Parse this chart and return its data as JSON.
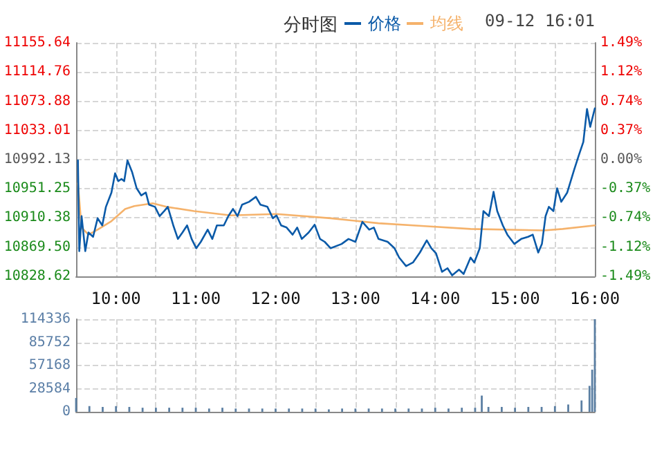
{
  "chart_data": [
    {
      "type": "line",
      "title": "分时图",
      "annotations": [
        "09-12 16:01"
      ],
      "series": [
        {
          "name": "价格",
          "color": "#0b5aa8",
          "x": [
            9.523,
            9.54,
            9.569,
            9.615,
            9.655,
            9.713,
            9.77,
            9.828,
            9.874,
            9.943,
            9.989,
            10.029,
            10.069,
            10.103,
            10.144,
            10.201,
            10.259,
            10.316,
            10.374,
            10.414,
            10.489,
            10.546,
            10.603,
            10.649,
            10.718,
            10.776,
            10.833,
            10.891,
            10.948,
            11.006,
            11.063,
            11.149,
            11.207,
            11.264,
            11.351,
            11.408,
            11.466,
            11.523,
            11.58,
            11.667,
            11.753,
            11.81,
            11.897,
            11.966,
            12.011,
            12.069,
            12.138,
            12.213,
            12.27,
            12.328,
            12.414,
            12.489,
            12.557,
            12.615,
            12.69,
            12.827,
            12.913,
            13,
            13.087,
            13.173,
            13.231,
            13.289,
            13.404,
            13.49,
            13.548,
            13.635,
            13.721,
            13.808,
            13.894,
            13.952,
            14.01,
            14.085,
            14.154,
            14.212,
            14.298,
            14.356,
            14.443,
            14.489,
            14.558,
            14.604,
            14.673,
            14.731,
            14.777,
            14.847,
            14.904,
            14.991,
            15.077,
            15.164,
            15.222,
            15.291,
            15.337,
            15.383,
            15.424,
            15.481,
            15.527,
            15.579,
            15.654,
            15.741,
            15.799,
            15.856,
            15.902,
            15.942,
            16
          ],
          "values": [
            10991,
            10864,
            10913,
            10864,
            10890,
            10884,
            10910,
            10900,
            10926,
            10946,
            10973,
            10962,
            10965,
            10962,
            10991,
            10975,
            10952,
            10942,
            10946,
            10929,
            10926,
            10913,
            10920,
            10926,
            10900,
            10881,
            10890,
            10900,
            10881,
            10868,
            10877,
            10894,
            10881,
            10900,
            10900,
            10913,
            10923,
            10913,
            10929,
            10933,
            10940,
            10929,
            10926,
            10910,
            10914,
            10900,
            10897,
            10887,
            10897,
            10881,
            10890,
            10901,
            10881,
            10877,
            10868,
            10874,
            10881,
            10877,
            10905,
            10894,
            10897,
            10881,
            10877,
            10868,
            10855,
            10843,
            10848,
            10862,
            10879,
            10868,
            10861,
            10835,
            10840,
            10830,
            10838,
            10832,
            10855,
            10848,
            10868,
            10920,
            10913,
            10947,
            10920,
            10900,
            10887,
            10874,
            10881,
            10884,
            10887,
            10862,
            10874,
            10913,
            10926,
            10920,
            10952,
            10933,
            10946,
            10978,
            10998,
            11017,
            11063,
            11038,
            11064
          ]
        },
        {
          "name": "均线",
          "color": "#f5b26b",
          "x": [
            9.523,
            9.569,
            9.655,
            9.77,
            9.943,
            10.115,
            10.23,
            10.46,
            10.632,
            10.977,
            11.437,
            12.011,
            12.69,
            13.289,
            13.866,
            14.443,
            15.366,
            15.597,
            16
          ],
          "values": [
            10959,
            10897,
            10887,
            10894,
            10906,
            10923,
            10927,
            10931,
            10926,
            10920,
            10914,
            10916,
            10910,
            10903,
            10899,
            10895,
            10893,
            10895,
            10900
          ]
        }
      ],
      "xlim": [
        9.5,
        16
      ],
      "xticks": [
        {
          "value": 10,
          "label": "10:00"
        },
        {
          "value": 10.5,
          "label": null
        },
        {
          "value": 11,
          "label": "11:00"
        },
        {
          "value": 11.5,
          "label": null
        },
        {
          "value": 12,
          "label": "12:00"
        },
        {
          "value": 12.5,
          "label": null
        },
        {
          "value": 13,
          "label": "13:00"
        },
        {
          "value": 13.5,
          "label": null
        },
        {
          "value": 14,
          "label": "14:00"
        },
        {
          "value": 14.5,
          "label": null
        },
        {
          "value": 15,
          "label": "15:00"
        },
        {
          "value": 15.5,
          "label": null
        },
        {
          "value": 16,
          "label": "16:00"
        }
      ],
      "ylim": [
        10828.62,
        11155.64
      ],
      "yticks": [
        10828.62,
        {
          "value": 10869.5,
          "label": "10869.50"
        },
        10910.38,
        10951.25,
        10992.13,
        11033.01,
        11073.88,
        11114.76,
        11155.64
      ],
      "y2lim": [
        -1.49,
        1.49
      ],
      "y2ticks": [
        {
          "value": -1.49,
          "label": "-1.49%"
        },
        {
          "value": -1.12,
          "label": "-1.12%"
        },
        {
          "value": -0.74,
          "label": "-0.74%"
        },
        {
          "value": -0.37,
          "label": "-0.37%"
        },
        {
          "value": 0,
          "label": "0.00%"
        },
        {
          "value": 0.37,
          "label": "0.37%"
        },
        {
          "value": 0.74,
          "label": "0.74%"
        },
        {
          "value": 1.12,
          "label": "1.12%"
        },
        {
          "value": 1.49,
          "label": "1.49%"
        }
      ],
      "grid": true,
      "legend": "top right",
      "marker": "none",
      "line_style": "solid"
    },
    {
      "type": "bar",
      "color": "#5b7fa3",
      "x": [
        9.5,
        9.6667,
        9.8333,
        10,
        10.1667,
        10.3333,
        10.5,
        10.6667,
        10.8333,
        11,
        11.1667,
        11.3333,
        11.5,
        11.6667,
        11.8333,
        12,
        12.1667,
        12.3333,
        12.5,
        12.6667,
        12.8333,
        13,
        13.1667,
        13.3333,
        13.5,
        13.6667,
        13.8333,
        14,
        14.1667,
        14.3333,
        14.5,
        14.5833,
        14.6667,
        14.8333,
        15,
        15.1667,
        15.3333,
        15.5,
        15.6667,
        15.8333,
        15.9333,
        15.9667,
        16
      ],
      "values": [
        17000,
        7000,
        6000,
        7000,
        6000,
        5000,
        5000,
        5000,
        5000,
        5000,
        4000,
        5000,
        4000,
        4000,
        4000,
        4000,
        4000,
        4000,
        4000,
        3000,
        4000,
        4000,
        4000,
        4000,
        4000,
        4000,
        4000,
        5000,
        4000,
        5000,
        5000,
        20000,
        6000,
        6000,
        5000,
        6000,
        6000,
        7000,
        9000,
        14000,
        32000,
        52000,
        114336
      ],
      "xlim": [
        9.5,
        16
      ],
      "xticks": [
        {
          "value": 10,
          "label": null
        },
        {
          "value": 10.5,
          "label": null
        },
        {
          "value": 11,
          "label": null
        },
        {
          "value": 11.5,
          "label": null
        },
        {
          "value": 12,
          "label": null
        },
        {
          "value": 12.5,
          "label": null
        },
        {
          "value": 13,
          "label": null
        },
        {
          "value": 13.5,
          "label": null
        },
        {
          "value": 14,
          "label": null
        },
        {
          "value": 14.5,
          "label": null
        },
        {
          "value": 15,
          "label": null
        },
        {
          "value": 15.5,
          "label": null
        },
        {
          "value": 16,
          "label": null
        }
      ],
      "ylim": [
        0,
        114336
      ],
      "yticks": [
        0,
        28584,
        57168,
        85752,
        114336
      ],
      "grid": true,
      "tick_labels": "y"
    }
  ]
}
